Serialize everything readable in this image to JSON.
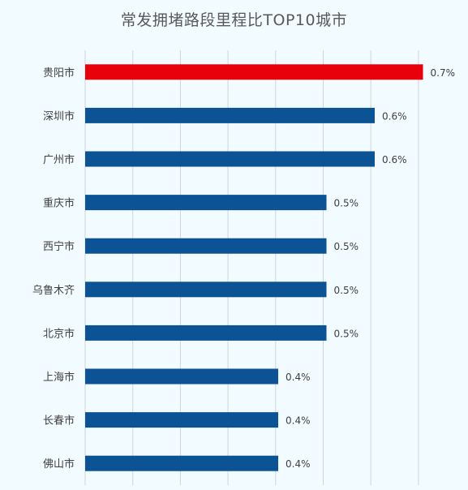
{
  "chart_data": {
    "type": "bar",
    "orientation": "horizontal",
    "title": "常发拥堵路段里程比TOP10城市",
    "categories": [
      "贵阳市",
      "深圳市",
      "广州市",
      "重庆市",
      "西宁市",
      "乌鲁木齐",
      "北京市",
      "上海市",
      "长春市",
      "佛山市"
    ],
    "values": [
      0.7,
      0.6,
      0.6,
      0.5,
      0.5,
      0.5,
      0.5,
      0.4,
      0.4,
      0.4
    ],
    "value_labels": [
      "0.7%",
      "0.6%",
      "0.6%",
      "0.5%",
      "0.5%",
      "0.5%",
      "0.5%",
      "0.4%",
      "0.4%",
      "0.4%"
    ],
    "highlight_index": 0,
    "xlabel": "",
    "ylabel": "",
    "grid": true,
    "legend": "none",
    "colors": {
      "highlight": "#e8000b",
      "bar": "#0b5394",
      "grid": "#d0d4d8",
      "background": "#f2fbff"
    }
  }
}
